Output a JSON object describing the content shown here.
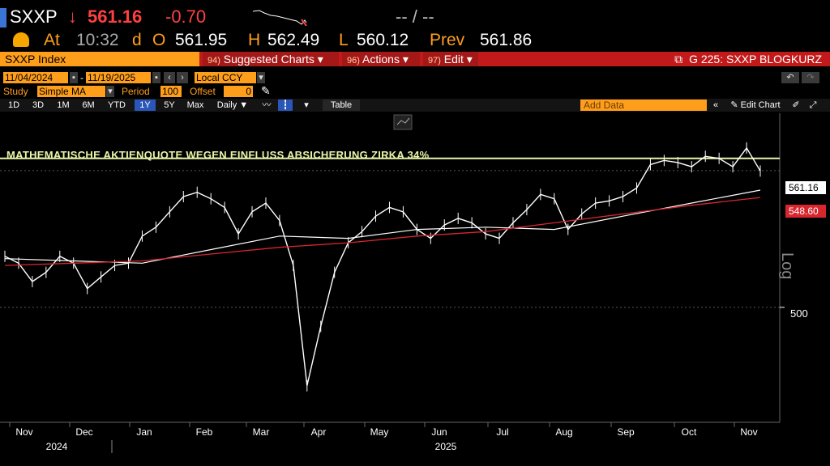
{
  "quote": {
    "ticker": "SXXP",
    "arrow": "↓",
    "last": "561.16",
    "change": "-0.70",
    "bidask": "-- / --",
    "at_label": "At",
    "time": "10:32",
    "d_label": "d",
    "open_label": "O",
    "open": "561.95",
    "high_label": "H",
    "high": "562.49",
    "low_label": "L",
    "low": "560.12",
    "prev_label": "Prev",
    "prev": "561.86"
  },
  "toolbar": {
    "security": "SXXP Index",
    "suggested_num": "94)",
    "suggested": "Suggested Charts ▾",
    "actions_num": "96)",
    "actions": "Actions ▾",
    "edit_num": "97)",
    "edit": "Edit ▾",
    "title": "G 225: SXXP BLOGKURZ"
  },
  "range": {
    "start": "11/04/2024",
    "end": "11/19/2025",
    "currency": "Local CCY"
  },
  "study": {
    "label": "Study",
    "type": "Simple MA",
    "period_label": "Period",
    "period": "100",
    "offset_label": "Offset",
    "offset": "0"
  },
  "periods": [
    "1D",
    "3D",
    "1M",
    "6M",
    "YTD",
    "1Y",
    "5Y",
    "Max"
  ],
  "selected_period": "1Y",
  "frequency": "Daily ▼",
  "table_label": "Table",
  "add_data_placeholder": "Add Data",
  "edit_chart": "Edit Chart",
  "annotation": "MATHEMATISCHE AKTIENQUOTE WEGEN EINFLUSS ABSICHERUNG ZIRKA 34%",
  "price_tags": {
    "last": "561.16",
    "sma": "548.60"
  },
  "yaxis_label": "Log",
  "colors": {
    "accent": "#ff9e1b",
    "bar": "#c21a1a",
    "price": "#ffffff",
    "sma100": "#ffffff",
    "sma200": "#d8262f",
    "hline": "#e9f4a8"
  },
  "chart_data": {
    "type": "line",
    "y_scale": "log",
    "yticks": [
      500
    ],
    "ylim": [
      455,
      585
    ],
    "xticks": [
      "Nov",
      "Dec",
      "Jan",
      "Feb",
      "Mar",
      "Apr",
      "May",
      "Jun",
      "Jul",
      "Aug",
      "Sep",
      "Oct",
      "Nov"
    ],
    "year_labels": [
      "2024",
      "2025"
    ],
    "hline": 567,
    "series": [
      {
        "points": [
          [
            0,
            522
          ],
          [
            1,
            519
          ],
          [
            2,
            511
          ],
          [
            3,
            515
          ],
          [
            4,
            522
          ],
          [
            5,
            519
          ],
          [
            6,
            508
          ],
          [
            7,
            513
          ],
          [
            8,
            518
          ],
          [
            9,
            519
          ],
          [
            10,
            531
          ],
          [
            11,
            535
          ],
          [
            12,
            542
          ],
          [
            13,
            549
          ],
          [
            14,
            551
          ],
          [
            15,
            548
          ],
          [
            16,
            544
          ],
          [
            17,
            532
          ],
          [
            18,
            542
          ],
          [
            19,
            546
          ],
          [
            20,
            538
          ],
          [
            21,
            518
          ],
          [
            22,
            468
          ],
          [
            23,
            492
          ],
          [
            24,
            515
          ],
          [
            25,
            528
          ],
          [
            26,
            533
          ],
          [
            27,
            540
          ],
          [
            28,
            544
          ],
          [
            29,
            542
          ],
          [
            30,
            534
          ],
          [
            31,
            530
          ],
          [
            32,
            536
          ],
          [
            33,
            539
          ],
          [
            34,
            537
          ],
          [
            35,
            532
          ],
          [
            36,
            530
          ],
          [
            37,
            537
          ],
          [
            38,
            543
          ],
          [
            39,
            550
          ],
          [
            40,
            548
          ],
          [
            41,
            534
          ],
          [
            42,
            541
          ],
          [
            43,
            546
          ],
          [
            44,
            547
          ],
          [
            45,
            549
          ],
          [
            46,
            553
          ],
          [
            47,
            564
          ],
          [
            48,
            566
          ],
          [
            49,
            565
          ],
          [
            50,
            563
          ],
          [
            51,
            568
          ],
          [
            52,
            567
          ],
          [
            53,
            563
          ],
          [
            54,
            572
          ],
          [
            55,
            561
          ]
        ]
      },
      {
        "name": "SMA 100",
        "points": [
          [
            0,
            521
          ],
          [
            5,
            520
          ],
          [
            10,
            519
          ],
          [
            15,
            525
          ],
          [
            20,
            531
          ],
          [
            25,
            530
          ],
          [
            30,
            534
          ],
          [
            35,
            535
          ],
          [
            40,
            534
          ],
          [
            45,
            540
          ],
          [
            50,
            546
          ],
          [
            55,
            552
          ]
        ]
      },
      {
        "name": "SMA 200",
        "points": [
          [
            0,
            518
          ],
          [
            5,
            519
          ],
          [
            10,
            520
          ],
          [
            15,
            523
          ],
          [
            20,
            526
          ],
          [
            25,
            528
          ],
          [
            30,
            531
          ],
          [
            35,
            533
          ],
          [
            40,
            537
          ],
          [
            45,
            541
          ],
          [
            50,
            545
          ],
          [
            55,
            548.6
          ]
        ]
      }
    ]
  }
}
